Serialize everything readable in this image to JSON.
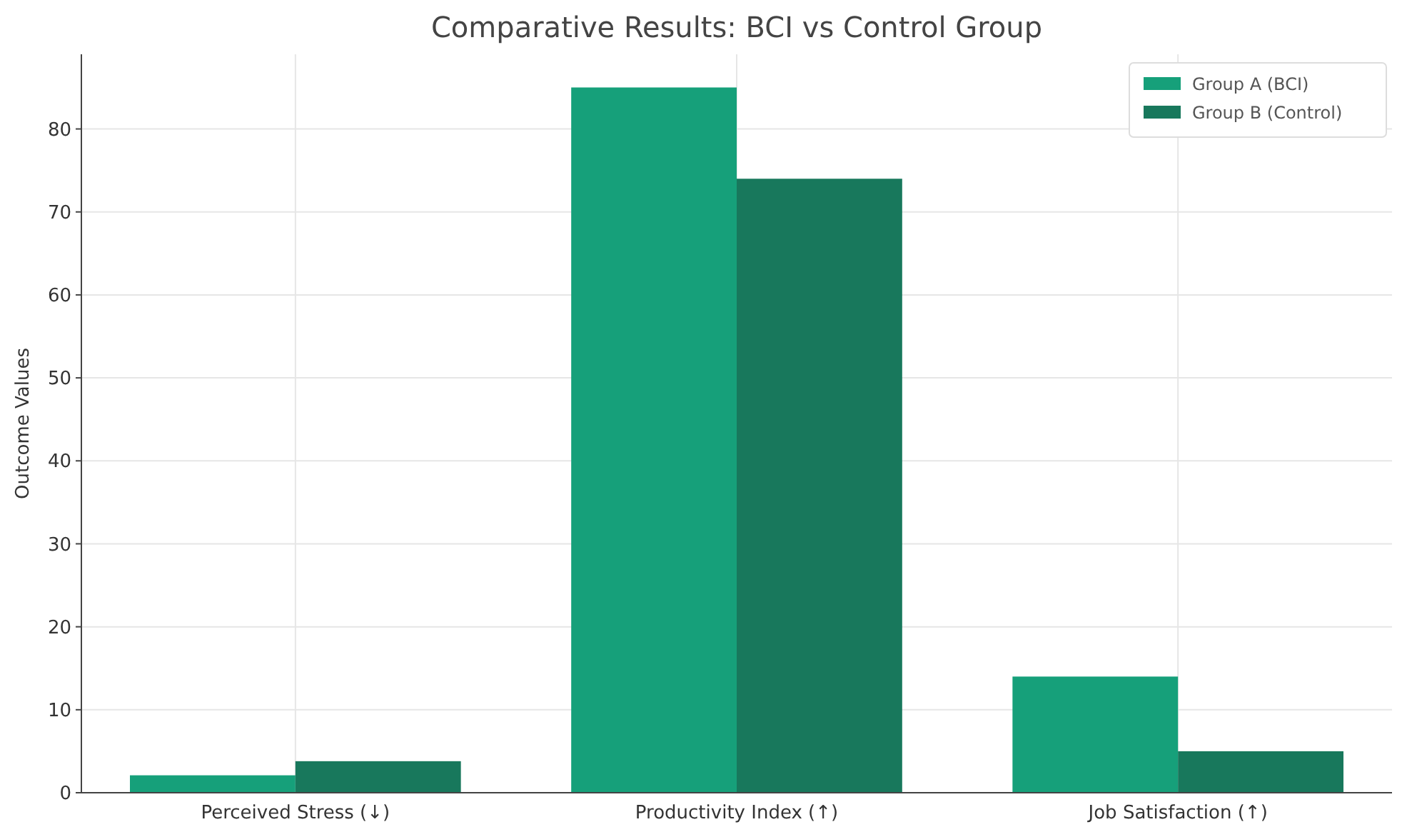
{
  "chart_data": {
    "type": "bar",
    "title": "Comparative Results: BCI vs Control Group",
    "ylabel": "Outcome Values",
    "categories": [
      "Perceived Stress (↓)",
      "Productivity Index (↑)",
      "Job Satisfaction (↑)"
    ],
    "series": [
      {
        "name": "Group A (BCI)",
        "color": "#16a07a",
        "values": [
          2.1,
          85,
          14
        ]
      },
      {
        "name": "Group B (Control)",
        "color": "#18785c",
        "values": [
          3.8,
          74,
          5
        ]
      }
    ],
    "ylim": [
      0,
      89
    ],
    "yticks": [
      0,
      10,
      20,
      30,
      40,
      50,
      60,
      70,
      80
    ],
    "grid": true,
    "legend": "top right"
  }
}
